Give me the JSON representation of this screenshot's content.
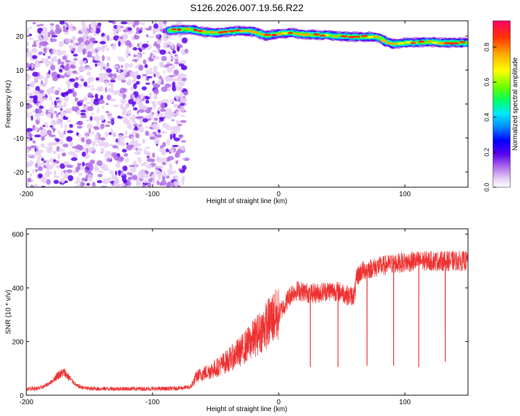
{
  "figure": {
    "title": "S126.2026.007.19.56.R22"
  },
  "chart_data": [
    {
      "type": "heatmap",
      "xlabel": "Height of straight line (km)",
      "ylabel": "Frequency (Hz)",
      "xlim": [
        -200,
        150
      ],
      "ylim": [
        -24.5,
        24.5
      ],
      "xticks": [
        -200,
        -100,
        0,
        100
      ],
      "yticks": [
        -20,
        -10,
        0,
        10,
        20
      ],
      "colorbar": {
        "label": "Normalized spectral amplitude",
        "range": [
          0,
          0.95
        ],
        "ticks": [
          0,
          0.2,
          0.4,
          0.6,
          0.8
        ],
        "colors": [
          "#ffffff",
          "#e6d0f5",
          "#b06ee8",
          "#5a00ee",
          "#0000ff",
          "#0088ff",
          "#00e8ff",
          "#00ff66",
          "#66ff00",
          "#ffff00",
          "#ffaa00",
          "#ff3300",
          "#ff0066"
        ]
      },
      "noise_region": {
        "x": [
          -200,
          -75
        ],
        "level": "low (0.05-0.2)"
      },
      "signal_track": {
        "x": [
          -87,
          -70,
          -60,
          -50,
          -40,
          -30,
          -20,
          -10,
          0,
          10,
          20,
          30,
          40,
          50,
          60,
          70,
          80,
          85,
          90,
          100,
          110,
          120,
          130,
          140,
          150
        ],
        "y": [
          21.7,
          22.0,
          21.2,
          21.0,
          21.3,
          21.6,
          21.3,
          20.1,
          20.7,
          20.9,
          20.5,
          20.4,
          20.2,
          19.9,
          19.8,
          19.8,
          19.6,
          18.3,
          17.7,
          18.0,
          18.1,
          18.3,
          18.0,
          18.1,
          18.0
        ],
        "peak_amplitude": 0.9
      }
    },
    {
      "type": "line",
      "xlabel": "Height of straight line (km)",
      "ylabel": "SNR (10 * v/v)",
      "xlim": [
        -200,
        150
      ],
      "ylim": [
        0,
        620
      ],
      "xticks": [
        -200,
        -100,
        0,
        100
      ],
      "yticks": [
        0,
        200,
        400,
        600
      ],
      "color": "#ee3030",
      "series": [
        {
          "x": [
            -200,
            -190,
            -185,
            -180,
            -175,
            -170,
            -165,
            -160,
            -155,
            -150,
            -140,
            -130,
            -120,
            -110,
            -100,
            -90,
            -80,
            -70,
            -65,
            -60,
            -50,
            -40,
            -30,
            -20,
            -10,
            -5,
            0,
            5,
            10,
            15,
            20,
            25,
            30,
            40,
            50,
            55,
            60,
            62,
            65,
            70,
            80,
            90,
            100,
            110,
            120,
            130,
            140,
            150
          ],
          "y": [
            25,
            25,
            35,
            50,
            75,
            85,
            60,
            35,
            28,
            24,
            24,
            24,
            24,
            24,
            24,
            24,
            26,
            30,
            70,
            80,
            100,
            130,
            165,
            210,
            260,
            290,
            300,
            340,
            380,
            390,
            385,
            380,
            380,
            390,
            385,
            370,
            372,
            440,
            460,
            470,
            480,
            490,
            495,
            500,
            500,
            500,
            500,
            500
          ],
          "spikes_down": [
            {
              "x": 25,
              "y": 105
            },
            {
              "x": 47,
              "y": 105
            },
            {
              "x": 70,
              "y": 110
            },
            {
              "x": 91,
              "y": 110
            },
            {
              "x": 111,
              "y": 105
            },
            {
              "x": 132,
              "y": 125
            }
          ]
        }
      ]
    }
  ]
}
